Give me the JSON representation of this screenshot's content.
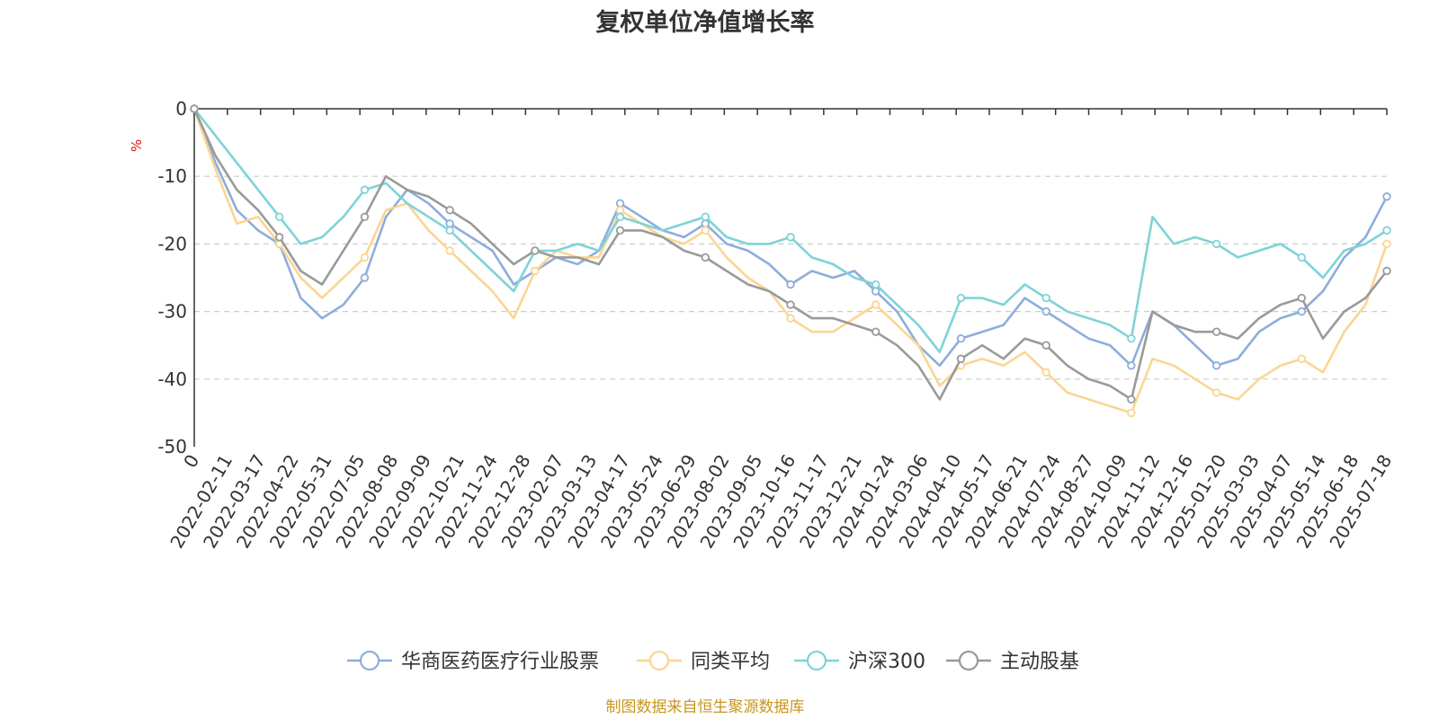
{
  "chart_data": {
    "type": "line",
    "title": "复权单位净值增长率",
    "ylabel": "%",
    "ylim": [
      -50,
      0
    ],
    "yticks": [
      0,
      -10,
      -20,
      -30,
      -40,
      -50
    ],
    "grid": true,
    "legend_position": "bottom",
    "x_tick_labels": [
      "0",
      "2022-02-11",
      "2022-03-17",
      "2022-04-22",
      "2022-05-31",
      "2022-07-05",
      "2022-08-08",
      "2022-09-09",
      "2022-10-21",
      "2022-11-24",
      "2022-12-28",
      "2023-02-07",
      "2023-03-13",
      "2023-04-17",
      "2023-05-24",
      "2023-06-29",
      "2023-08-02",
      "2023-09-05",
      "2023-10-16",
      "2023-11-17",
      "2023-12-21",
      "2024-01-24",
      "2024-03-06",
      "2024-04-10",
      "2024-05-17",
      "2024-06-21",
      "2024-07-24",
      "2024-08-27",
      "2024-10-09",
      "2024-11-12",
      "2024-12-16",
      "2025-01-20",
      "2025-03-03",
      "2025-04-07",
      "2025-05-14",
      "2025-06-18",
      "2025-07-18"
    ],
    "series": [
      {
        "name": "华商医药医疗行业股票",
        "color": "#8eaddc",
        "values": [
          0,
          -8,
          -15,
          -18,
          -20,
          -28,
          -31,
          -29,
          -25,
          -16,
          -12,
          -14,
          -17,
          -19,
          -21,
          -26,
          -24,
          -22,
          -23,
          -21,
          -14,
          -16,
          -18,
          -19,
          -17,
          -20,
          -21,
          -23,
          -26,
          -24,
          -25,
          -24,
          -27,
          -30,
          -35,
          -38,
          -34,
          -33,
          -32,
          -28,
          -30,
          -32,
          -34,
          -35,
          -38,
          -30,
          -32,
          -35,
          -38,
          -37,
          -33,
          -31,
          -30,
          -27,
          -22,
          -19,
          -13
        ]
      },
      {
        "name": "同类平均",
        "color": "#fbd592",
        "values": [
          0,
          -9,
          -17,
          -16,
          -20,
          -25,
          -28,
          -25,
          -22,
          -15,
          -14,
          -18,
          -21,
          -24,
          -27,
          -31,
          -24,
          -21,
          -22,
          -22,
          -15,
          -17,
          -19,
          -20,
          -18,
          -22,
          -25,
          -27,
          -31,
          -33,
          -33,
          -31,
          -29,
          -32,
          -35,
          -41,
          -38,
          -37,
          -38,
          -36,
          -39,
          -42,
          -43,
          -44,
          -45,
          -37,
          -38,
          -40,
          -42,
          -43,
          -40,
          -38,
          -37,
          -39,
          -33,
          -29,
          -20
        ]
      },
      {
        "name": "沪深300",
        "color": "#7fd3d7",
        "values": [
          0,
          -4,
          -8,
          -12,
          -16,
          -20,
          -19,
          -16,
          -12,
          -11,
          -14,
          -16,
          -18,
          -21,
          -24,
          -27,
          -21,
          -21,
          -20,
          -21,
          -16,
          -17,
          -18,
          -17,
          -16,
          -19,
          -20,
          -20,
          -19,
          -22,
          -23,
          -25,
          -26,
          -29,
          -32,
          -36,
          -28,
          -28,
          -29,
          -26,
          -28,
          -30,
          -31,
          -32,
          -34,
          -16,
          -20,
          -19,
          -20,
          -22,
          -21,
          -20,
          -22,
          -25,
          -21,
          -20,
          -18
        ]
      },
      {
        "name": "主动股基",
        "color": "#9a9a9a",
        "values": [
          0,
          -7,
          -12,
          -15,
          -19,
          -24,
          -26,
          -21,
          -16,
          -10,
          -12,
          -13,
          -15,
          -17,
          -20,
          -23,
          -21,
          -22,
          -22,
          -23,
          -18,
          -18,
          -19,
          -21,
          -22,
          -24,
          -26,
          -27,
          -29,
          -31,
          -31,
          -32,
          -33,
          -35,
          -38,
          -43,
          -37,
          -35,
          -37,
          -34,
          -35,
          -38,
          -40,
          -41,
          -43,
          -30,
          -32,
          -33,
          -33,
          -34,
          -31,
          -29,
          -28,
          -34,
          -30,
          -28,
          -24
        ]
      }
    ]
  },
  "source_note": "制图数据来自恒生聚源数据库"
}
